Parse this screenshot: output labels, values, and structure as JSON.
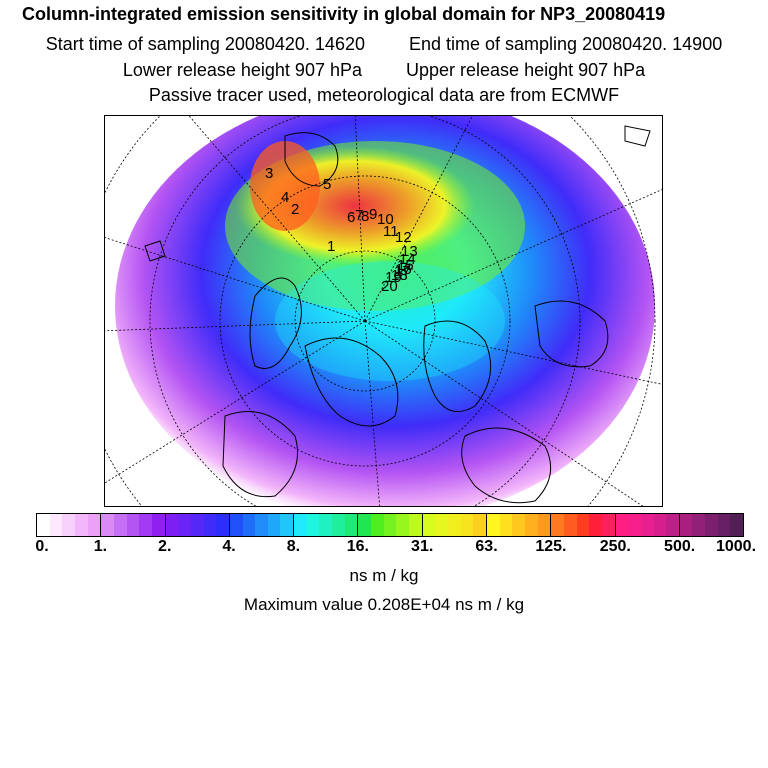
{
  "header": {
    "title": "Column-integrated emission sensitivity in global domain for NP3_20080419",
    "start_time": "Start time of sampling 20080420. 14620",
    "end_time": "End time of sampling 20080420. 14900",
    "lower_height": "Lower release height  907 hPa",
    "upper_height": "Upper release height  907 hPa",
    "tracer_note": "Passive tracer used, meteorological data are from ECMWF"
  },
  "colorbar": {
    "tick_labels": [
      "0.",
      "1.",
      "2.",
      "4.",
      "8.",
      "16.",
      "31.",
      "63.",
      "125.",
      "250.",
      "500.",
      "1000."
    ],
    "swatches": [
      "#ffffff",
      "#fde8fe",
      "#f8d0fc",
      "#f3b6fa",
      "#eca0f7",
      "#d98af5",
      "#c56ff4",
      "#b454f3",
      "#a13af2",
      "#8f20f0",
      "#7d1ff3",
      "#6a24f5",
      "#5628f7",
      "#402cf8",
      "#2c2ef9",
      "#1f50f9",
      "#1f6ef9",
      "#1f8cf9",
      "#1fa8f9",
      "#1fc6f9",
      "#20eafa",
      "#1ff6e0",
      "#1ff2c0",
      "#1fee9c",
      "#1fea78",
      "#1fe652",
      "#4fee1f",
      "#74f21f",
      "#98f61f",
      "#bcfa1f",
      "#d8fb1f",
      "#e6f71f",
      "#f1ee1f",
      "#f8e31f",
      "#fbd01f",
      "#fff51f",
      "#ffe01f",
      "#ffc81f",
      "#ffb01f",
      "#ff981f",
      "#ff7a1f",
      "#ff5c1f",
      "#ff3e1f",
      "#ff1f3a",
      "#ff1f5e",
      "#ff1f82",
      "#f71f8a",
      "#e81f8e",
      "#d41f8c",
      "#be1f88",
      "#a81f80",
      "#921f78",
      "#7c1f6e",
      "#661f62",
      "#521f54"
    ],
    "units": "ns m / kg",
    "max_value": "Maximum value  0.208E+04 ns m / kg"
  },
  "map": {
    "trajectory_labels": [
      "1",
      "2",
      "3",
      "4",
      "5",
      "6",
      "7",
      "8",
      "9",
      "10",
      "11",
      "12",
      "13",
      "14",
      "15",
      "16",
      "17",
      "18",
      "19",
      "20"
    ]
  }
}
